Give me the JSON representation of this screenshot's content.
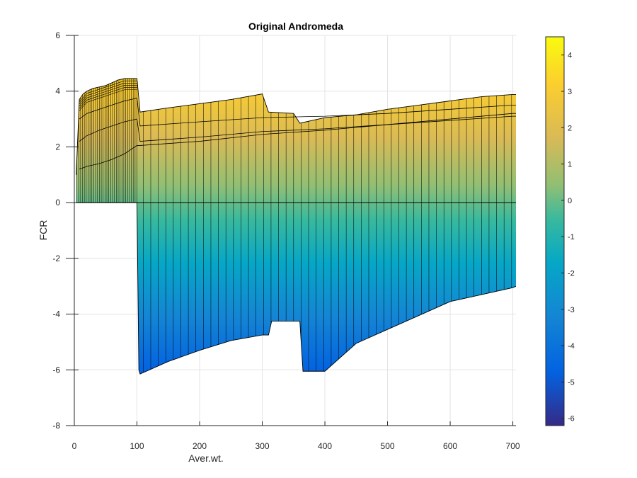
{
  "chart_data": {
    "type": "surface",
    "title": "Original Andromeda",
    "xlabel": "Aver.wt.",
    "ylabel": "FCR",
    "xlim": [
      0,
      705
    ],
    "ylim": [
      -8,
      6
    ],
    "xticks": [
      0,
      100,
      200,
      300,
      400,
      500,
      600,
      700
    ],
    "yticks": [
      -8,
      -6,
      -4,
      -2,
      0,
      2,
      4,
      6
    ],
    "grid": true,
    "colormap": "parula",
    "colorbar": {
      "position": "right",
      "range": [
        -6.2,
        4.5
      ],
      "ticks": [
        -6,
        -5,
        -4,
        -3,
        -2,
        -1,
        0,
        1,
        2,
        3,
        4
      ],
      "colors": [
        "#352A87",
        "#0363E1",
        "#1485D4",
        "#06A7C6",
        "#38B99E",
        "#92BF73",
        "#D9BA56",
        "#FCCE2E",
        "#F9FB0E"
      ]
    },
    "upper_boundary": {
      "x": [
        3,
        8,
        14,
        20,
        30,
        40,
        50,
        60,
        70,
        80,
        90,
        100,
        105,
        150,
        200,
        250,
        300,
        310,
        350,
        360,
        400,
        450,
        500,
        550,
        600,
        650,
        700,
        705
      ],
      "y": [
        1.0,
        3.7,
        3.9,
        4.0,
        4.1,
        4.15,
        4.2,
        4.3,
        4.4,
        4.45,
        4.45,
        4.45,
        3.25,
        3.4,
        3.55,
        3.7,
        3.9,
        3.25,
        3.2,
        2.85,
        3.05,
        3.15,
        3.35,
        3.5,
        3.65,
        3.8,
        3.88,
        3.88
      ]
    },
    "lower_boundary": {
      "x": [
        3,
        100,
        103,
        105,
        150,
        200,
        250,
        300,
        310,
        315,
        350,
        360,
        365,
        400,
        450,
        500,
        550,
        600,
        650,
        700,
        705
      ],
      "y": [
        0,
        0,
        -6.0,
        -6.15,
        -5.7,
        -5.3,
        -4.95,
        -4.75,
        -4.75,
        -4.25,
        -4.25,
        -4.25,
        -6.05,
        -6.05,
        -5.05,
        -4.55,
        -4.05,
        -3.55,
        -3.3,
        -3.05,
        -3.0
      ]
    },
    "mesh_lines": [
      {
        "x": [
          8,
          20,
          40,
          60,
          80,
          100,
          105,
          200,
          300,
          400,
          500,
          600,
          700,
          705
        ],
        "y": [
          3.0,
          3.2,
          3.35,
          3.5,
          3.65,
          3.75,
          2.75,
          2.9,
          3.05,
          3.1,
          3.2,
          3.35,
          3.5,
          3.5
        ]
      },
      {
        "x": [
          8,
          20,
          40,
          60,
          80,
          100,
          105,
          200,
          300,
          400,
          500,
          600,
          700,
          705
        ],
        "y": [
          2.2,
          2.4,
          2.6,
          2.75,
          2.9,
          3.0,
          2.2,
          2.35,
          2.55,
          2.65,
          2.8,
          2.95,
          3.1,
          3.1
        ]
      },
      {
        "x": [
          8,
          20,
          40,
          60,
          80,
          100,
          105,
          200,
          300,
          400,
          500,
          600,
          700,
          705
        ],
        "y": [
          1.2,
          1.3,
          1.4,
          1.55,
          1.75,
          2.05,
          2.05,
          2.2,
          2.45,
          2.6,
          2.8,
          3.0,
          3.2,
          3.2
        ]
      }
    ]
  }
}
